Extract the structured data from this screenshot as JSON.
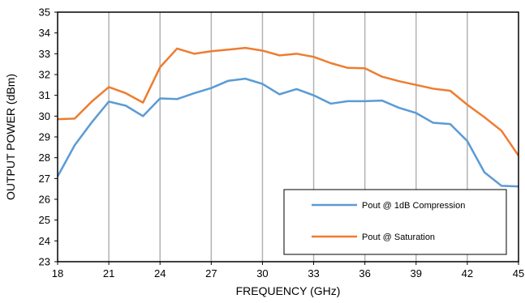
{
  "chart_data": {
    "type": "line",
    "title": "",
    "xlabel": "FREQUENCY (GHz)",
    "ylabel": "OUTPUT POWER (dBm)",
    "xlim": [
      18,
      45
    ],
    "ylim": [
      23,
      35
    ],
    "x_ticks": [
      18,
      21,
      24,
      27,
      30,
      33,
      36,
      39,
      42,
      45
    ],
    "y_ticks": [
      23,
      24,
      25,
      26,
      27,
      28,
      29,
      30,
      31,
      32,
      33,
      34,
      35
    ],
    "grid": "vertical",
    "legend_position": "bottom-right",
    "x": [
      18,
      19,
      20,
      21,
      22,
      23,
      24,
      25,
      26,
      27,
      28,
      29,
      30,
      31,
      32,
      33,
      34,
      35,
      36,
      37,
      38,
      39,
      40,
      41,
      42,
      43,
      44,
      45
    ],
    "series": [
      {
        "name": "Pout @ 1dB Compression",
        "color": "#5b9bd5",
        "values": [
          27.1,
          28.6,
          29.7,
          30.7,
          30.5,
          30.0,
          30.85,
          30.82,
          31.1,
          31.35,
          31.7,
          31.8,
          31.55,
          31.05,
          31.3,
          31.0,
          30.6,
          30.72,
          30.72,
          30.75,
          30.4,
          30.15,
          29.68,
          29.62,
          28.8,
          27.3,
          26.65,
          26.62
        ]
      },
      {
        "name": "Pout @ Saturation",
        "color": "#ed7d31",
        "values": [
          29.85,
          29.88,
          30.7,
          31.4,
          31.1,
          30.65,
          32.35,
          33.25,
          33.0,
          33.12,
          33.2,
          33.28,
          33.15,
          32.92,
          33.0,
          32.85,
          32.55,
          32.32,
          32.3,
          31.9,
          31.68,
          31.5,
          31.32,
          31.22,
          30.55,
          29.95,
          29.3,
          28.1
        ]
      }
    ]
  }
}
